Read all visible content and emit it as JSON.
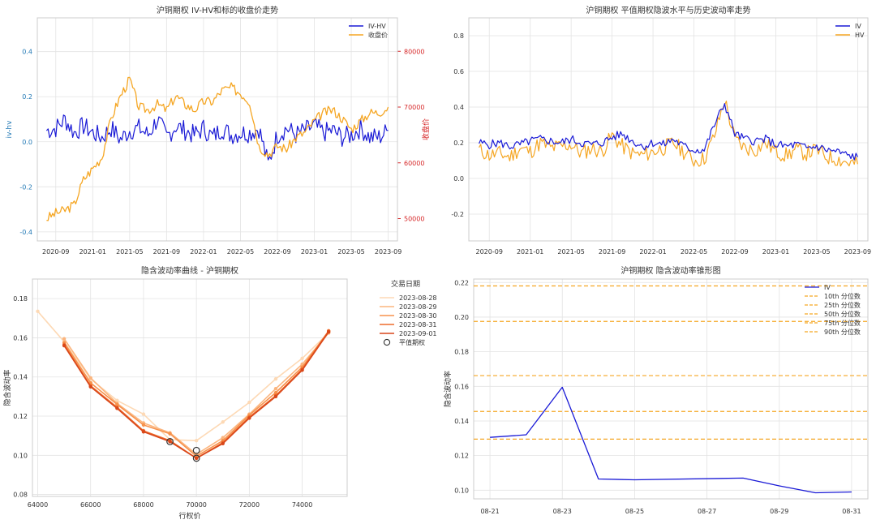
{
  "chart_data": [
    {
      "type": "line",
      "title": "沪铜期权 IV-HV和标的收盘价走势",
      "xlabel": "",
      "ylabel": "iv-hv",
      "ylabel_right": "收盘价",
      "ylim": [
        -0.44,
        0.55
      ],
      "ylim_right": [
        46000,
        86000
      ],
      "x_ticks": [
        "2020-09",
        "2021-01",
        "2021-05",
        "2021-09",
        "2022-01",
        "2022-05",
        "2022-09",
        "2023-01",
        "2023-05",
        "2023-09"
      ],
      "y_ticks": [
        -0.4,
        -0.2,
        0.0,
        0.2,
        0.4
      ],
      "y_ticks_right": [
        50000,
        60000,
        70000,
        80000
      ],
      "legend": [
        "IV-HV",
        "收盘价"
      ],
      "legend_position": "upper right",
      "colors": {
        "iv_hv": "#1a1ad6",
        "close": "#f5a623",
        "left_axis": "#1f77b4",
        "right_axis": "#d62728"
      },
      "series": [
        {
          "name": "IV-HV",
          "axis": "left",
          "x": [
            "2020-08",
            "2020-09",
            "2020-10",
            "2020-11",
            "2020-12",
            "2021-01",
            "2021-02",
            "2021-03",
            "2021-04",
            "2021-05",
            "2021-06",
            "2021-07",
            "2021-08",
            "2021-09",
            "2021-10",
            "2021-11",
            "2021-12",
            "2022-01",
            "2022-02",
            "2022-03",
            "2022-04",
            "2022-05",
            "2022-06",
            "2022-07",
            "2022-08",
            "2022-09",
            "2022-10",
            "2022-11",
            "2022-12",
            "2023-01",
            "2023-02",
            "2023-03",
            "2023-04",
            "2023-05",
            "2023-06",
            "2023-07",
            "2023-08",
            "2023-09"
          ],
          "values": [
            0.05,
            0.06,
            0.1,
            0.04,
            0.07,
            0.04,
            0.02,
            0.06,
            0.01,
            0.05,
            0.06,
            0.03,
            0.1,
            0.02,
            0.07,
            0.05,
            0.03,
            0.06,
            0.02,
            0.06,
            0.03,
            0.04,
            0.04,
            0.06,
            -0.1,
            0.03,
            0.06,
            0.03,
            0.05,
            0.07,
            0.04,
            0.05,
            0.02,
            0.03,
            0.06,
            0.02,
            0.02,
            0.05
          ]
        },
        {
          "name": "收盘价",
          "axis": "right",
          "x": [
            "2020-08",
            "2020-09",
            "2020-10",
            "2020-11",
            "2020-12",
            "2021-01",
            "2021-02",
            "2021-03",
            "2021-04",
            "2021-05",
            "2021-06",
            "2021-07",
            "2021-08",
            "2021-09",
            "2021-10",
            "2021-11",
            "2021-12",
            "2022-01",
            "2022-02",
            "2022-03",
            "2022-04",
            "2022-05",
            "2022-06",
            "2022-07",
            "2022-08",
            "2022-09",
            "2022-10",
            "2022-11",
            "2022-12",
            "2023-01",
            "2023-02",
            "2023-03",
            "2023-04",
            "2023-05",
            "2023-06",
            "2023-07",
            "2023-08",
            "2023-09"
          ],
          "values": [
            50000,
            51000,
            51500,
            52500,
            57000,
            59000,
            61000,
            68000,
            72000,
            75000,
            70000,
            69500,
            70500,
            69500,
            72000,
            70500,
            69500,
            71000,
            71000,
            73000,
            73500,
            72500,
            71000,
            63000,
            61500,
            63000,
            62500,
            64500,
            65500,
            67500,
            69000,
            69500,
            68000,
            66000,
            67500,
            69000,
            69000,
            70000
          ]
        }
      ]
    },
    {
      "type": "line",
      "title": "沪铜期权 平值期权隐波水平与历史波动率走势",
      "xlabel": "",
      "ylabel": "",
      "ylim": [
        -0.35,
        0.9
      ],
      "x_ticks": [
        "2020-09",
        "2021-01",
        "2021-05",
        "2021-09",
        "2022-01",
        "2022-05",
        "2022-09",
        "2023-01",
        "2023-05",
        "2023-09"
      ],
      "y_ticks": [
        -0.2,
        0.0,
        0.2,
        0.4,
        0.6,
        0.8
      ],
      "legend": [
        "IV",
        "HV"
      ],
      "legend_position": "upper right",
      "colors": {
        "iv": "#1a1ad6",
        "hv": "#f5a623"
      },
      "series": [
        {
          "name": "IV",
          "x": [
            "2020-08",
            "2020-09",
            "2020-10",
            "2020-11",
            "2020-12",
            "2021-01",
            "2021-02",
            "2021-03",
            "2021-04",
            "2021-05",
            "2021-06",
            "2021-07",
            "2021-08",
            "2021-09",
            "2021-10",
            "2021-11",
            "2021-12",
            "2022-01",
            "2022-02",
            "2022-03",
            "2022-04",
            "2022-05",
            "2022-06",
            "2022-07",
            "2022-08",
            "2022-09",
            "2022-10",
            "2022-11",
            "2022-12",
            "2023-01",
            "2023-02",
            "2023-03",
            "2023-04",
            "2023-05",
            "2023-06",
            "2023-07",
            "2023-08",
            "2023-09"
          ],
          "values": [
            0.2,
            0.19,
            0.2,
            0.18,
            0.19,
            0.21,
            0.22,
            0.21,
            0.2,
            0.22,
            0.2,
            0.19,
            0.2,
            0.23,
            0.25,
            0.21,
            0.18,
            0.2,
            0.19,
            0.22,
            0.18,
            0.16,
            0.16,
            0.3,
            0.42,
            0.25,
            0.22,
            0.21,
            0.22,
            0.19,
            0.18,
            0.19,
            0.17,
            0.18,
            0.16,
            0.15,
            0.13,
            0.12
          ]
        },
        {
          "name": "HV",
          "x": [
            "2020-08",
            "2020-09",
            "2020-10",
            "2020-11",
            "2020-12",
            "2021-01",
            "2021-02",
            "2021-03",
            "2021-04",
            "2021-05",
            "2021-06",
            "2021-07",
            "2021-08",
            "2021-09",
            "2021-10",
            "2021-11",
            "2021-12",
            "2022-01",
            "2022-02",
            "2022-03",
            "2022-04",
            "2022-05",
            "2022-06",
            "2022-07",
            "2022-08",
            "2022-09",
            "2022-10",
            "2022-11",
            "2022-12",
            "2023-01",
            "2023-02",
            "2023-03",
            "2023-04",
            "2023-05",
            "2023-06",
            "2023-07",
            "2023-08",
            "2023-09"
          ],
          "values": [
            0.16,
            0.13,
            0.14,
            0.12,
            0.17,
            0.15,
            0.2,
            0.17,
            0.18,
            0.19,
            0.14,
            0.17,
            0.15,
            0.24,
            0.18,
            0.14,
            0.13,
            0.15,
            0.17,
            0.2,
            0.15,
            0.1,
            0.11,
            0.24,
            0.44,
            0.22,
            0.17,
            0.16,
            0.2,
            0.15,
            0.13,
            0.16,
            0.14,
            0.16,
            0.12,
            0.11,
            0.09,
            0.08
          ]
        }
      ]
    },
    {
      "type": "line",
      "title": "隐含波动率曲线 - 沪铜期权",
      "xlabel": "行权价",
      "ylabel": "隐含波动率",
      "xlim": [
        63800,
        75700
      ],
      "ylim": [
        0.079,
        0.19
      ],
      "x_ticks": [
        64000,
        66000,
        68000,
        70000,
        72000,
        74000
      ],
      "y_ticks": [
        0.08,
        0.1,
        0.12,
        0.14,
        0.16,
        0.18
      ],
      "legend_title": "交易日期",
      "legend": [
        "2023-08-28",
        "2023-08-29",
        "2023-08-30",
        "2023-08-31",
        "2023-09-01",
        "平值期权"
      ],
      "legend_position": "outside right",
      "colors": {
        "2023-08-28": "#fdd9b5",
        "2023-08-29": "#fbb57e",
        "2023-08-30": "#f7924d",
        "2023-08-31": "#ee6b2c",
        "2023-09-01": "#d9471a"
      },
      "series": [
        {
          "name": "2023-08-28",
          "x": [
            64000,
            65000,
            66000,
            67000,
            68000,
            69000,
            70000,
            71000,
            72000,
            73000,
            74000,
            75000
          ],
          "values": [
            0.1735,
            0.158,
            0.139,
            0.128,
            0.121,
            0.108,
            0.1075,
            0.117,
            0.127,
            0.139,
            0.1495,
            0.1625
          ]
        },
        {
          "name": "2023-08-29",
          "x": [
            65000,
            66000,
            67000,
            68000,
            69000,
            70000,
            71000,
            72000,
            73000,
            74000,
            75000
          ],
          "values": [
            0.1595,
            0.1395,
            0.1265,
            0.1165,
            0.1115,
            0.1005,
            0.109,
            0.121,
            0.134,
            0.1465,
            0.1625
          ]
        },
        {
          "name": "2023-08-30",
          "x": [
            65000,
            66000,
            67000,
            68000,
            69000,
            70000,
            71000,
            72000,
            73000,
            74000,
            75000
          ],
          "values": [
            0.1575,
            0.137,
            0.126,
            0.1155,
            0.111,
            0.0995,
            0.1075,
            0.1205,
            0.132,
            0.145,
            0.1635
          ]
        },
        {
          "name": "2023-08-31",
          "x": [
            65000,
            66000,
            67000,
            68000,
            69000,
            70000,
            71000,
            72000,
            73000,
            74000,
            75000
          ],
          "values": [
            0.1565,
            0.1355,
            0.1245,
            0.1125,
            0.1075,
            0.0985,
            0.1065,
            0.1195,
            0.1305,
            0.144,
            0.1635
          ]
        },
        {
          "name": "2023-09-01",
          "x": [
            65000,
            66000,
            67000,
            68000,
            69000,
            70000,
            71000,
            72000,
            73000,
            74000,
            75000
          ],
          "values": [
            0.156,
            0.135,
            0.124,
            0.112,
            0.107,
            0.0985,
            0.106,
            0.119,
            0.13,
            0.1435,
            0.163
          ]
        }
      ],
      "atm_points": [
        {
          "x": 69000,
          "y": 0.107
        },
        {
          "x": 70000,
          "y": 0.1025
        },
        {
          "x": 70000,
          "y": 0.0985
        }
      ]
    },
    {
      "type": "line",
      "title": "沪铜期权 隐含波动率锥形图",
      "xlabel": "",
      "ylabel": "隐含波动率",
      "ylim": [
        0.095,
        0.222
      ],
      "x": [
        "08-21",
        "08-22",
        "08-23",
        "08-24",
        "08-25",
        "08-26",
        "08-27",
        "08-28",
        "08-29",
        "08-30",
        "08-31"
      ],
      "x_ticks": [
        "08-21",
        "08-23",
        "08-25",
        "08-27",
        "08-29",
        "08-31"
      ],
      "y_ticks": [
        0.1,
        0.12,
        0.14,
        0.16,
        0.18,
        0.2,
        0.22
      ],
      "legend": [
        "IV",
        "10th 分位数",
        "25th 分位数",
        "50th 分位数",
        "75th 分位数",
        "90th 分位数"
      ],
      "legend_position": "upper right",
      "colors": {
        "iv": "#1a1ad6",
        "percentile": "#f5a623"
      },
      "series": [
        {
          "name": "IV",
          "x": [
            "08-21",
            "08-22",
            "08-23",
            "08-24",
            "08-25",
            "08-28",
            "08-29",
            "08-30",
            "08-31"
          ],
          "values": [
            0.1305,
            0.132,
            0.1595,
            0.1065,
            0.106,
            0.107,
            0.1025,
            0.0985,
            0.099
          ]
        }
      ],
      "hlines": [
        {
          "name": "10th 分位数",
          "value": 0.1295
        },
        {
          "name": "25th 分位数",
          "value": 0.1455
        },
        {
          "name": "50th 分位数",
          "value": 0.1662
        },
        {
          "name": "75th 分位数",
          "value": 0.1975
        },
        {
          "name": "90th 分位数",
          "value": 0.218
        }
      ]
    }
  ]
}
